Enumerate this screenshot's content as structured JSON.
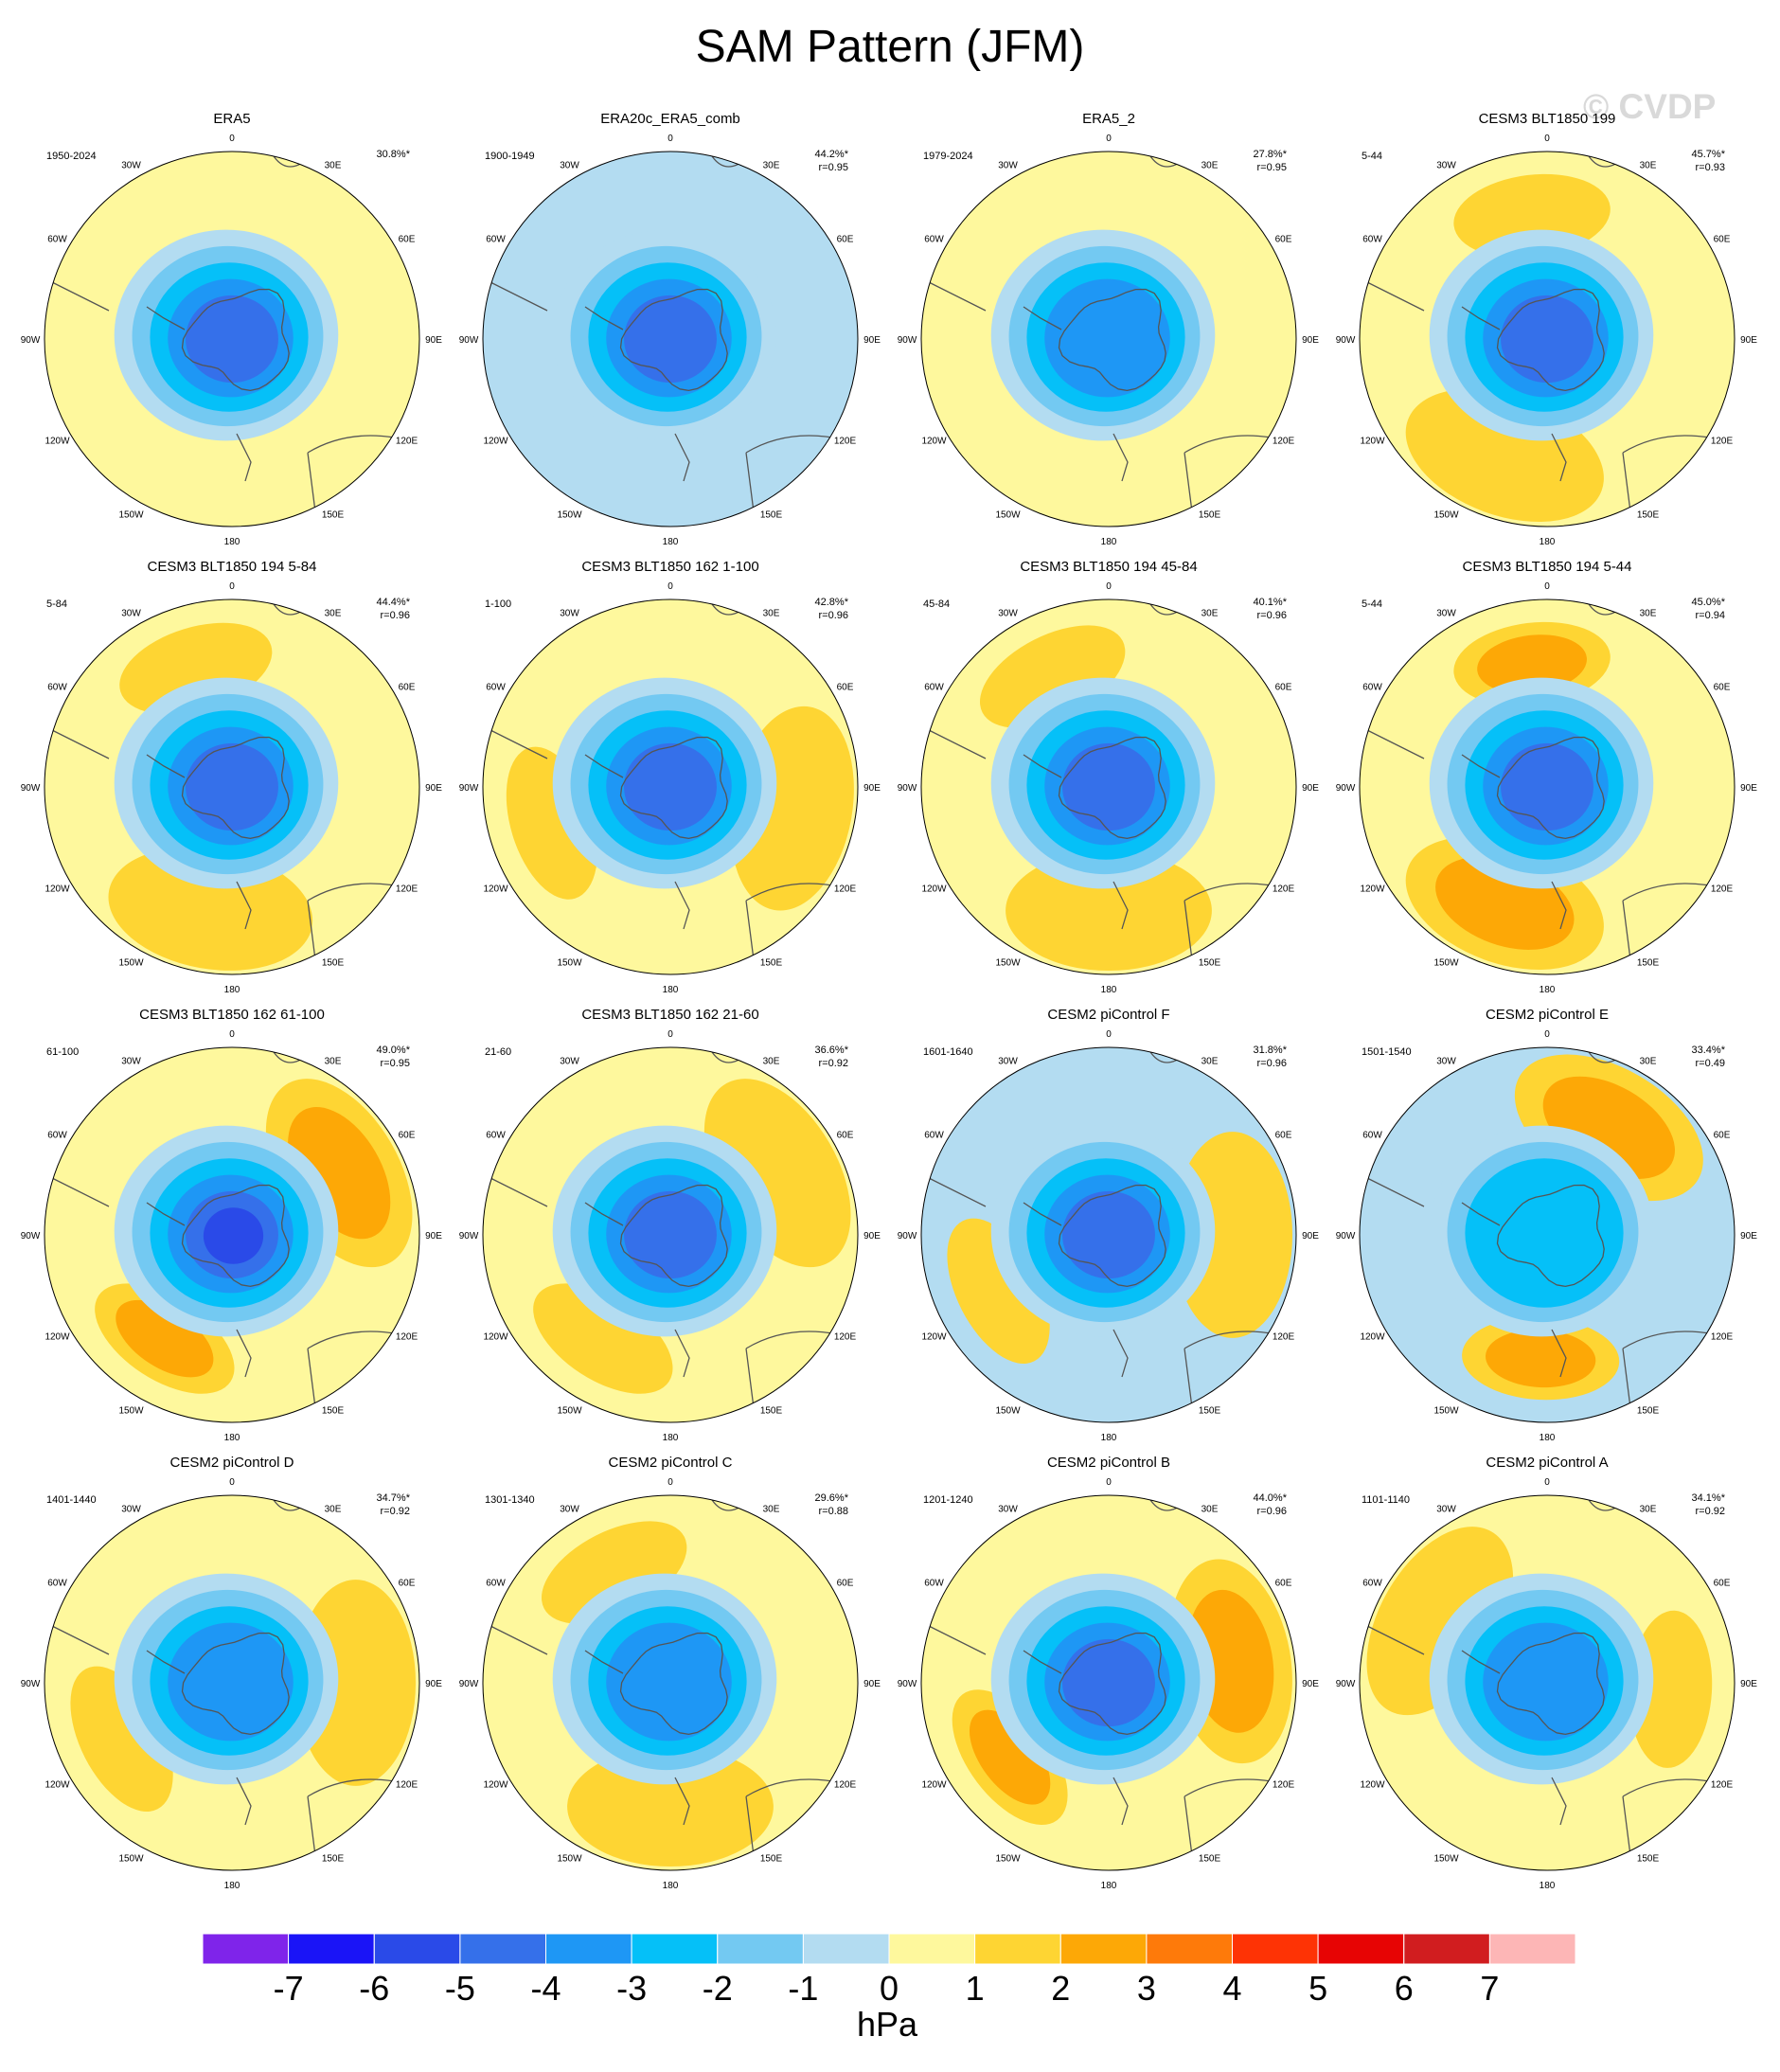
{
  "title": "SAM Pattern (JFM)",
  "watermark": "© CVDP",
  "chart_data": {
    "type": "heatmap",
    "projection": "south-polar-stereographic",
    "variable": "SAM Pattern (JFM)",
    "units": "hPa",
    "colorbar": {
      "levels": [
        -7,
        -6,
        -5,
        -4,
        -3,
        -2,
        -1,
        0,
        1,
        2,
        3,
        4,
        5,
        6,
        7
      ],
      "colors": [
        "#7f24ea",
        "#1a14f7",
        "#2a4ae8",
        "#3570ea",
        "#1e97f5",
        "#05c0f8",
        "#73c9f2",
        "#b3dcf1",
        "#fef89d",
        "#fed533",
        "#fda806",
        "#fe7a0a",
        "#fe3305",
        "#e70404",
        "#d11d1f",
        "#fdb6b6"
      ]
    },
    "lon_labels": [
      "0",
      "30E",
      "60E",
      "90E",
      "120E",
      "150E",
      "180",
      "150W",
      "120W",
      "90W",
      "60W",
      "30W"
    ],
    "panels": [
      {
        "title": "ERA5",
        "years": "1950-2024",
        "pct": "30.8%*",
        "r": "",
        "ring_amp": 0.0,
        "ring_phase": 0,
        "core_level": -4,
        "outer": 0
      },
      {
        "title": "ERA20c_ERA5_comb",
        "years": "1900-1949",
        "pct": "44.2%*",
        "r": "r=0.95",
        "ring_amp": 0.0,
        "ring_phase": 0,
        "core_level": -4,
        "outer": -1
      },
      {
        "title": "ERA5_2",
        "years": "1979-2024",
        "pct": "27.8%*",
        "r": "r=0.95",
        "ring_amp": 0.0,
        "ring_phase": 0,
        "core_level": -3,
        "outer": 0
      },
      {
        "title": "CESM3 BLT1850 199",
        "years": "5-44",
        "pct": "45.7%*",
        "r": "r=0.93",
        "ring_amp": 1.8,
        "ring_phase": 200,
        "core_level": -4,
        "outer": 0
      },
      {
        "title": "CESM3 BLT1850 194 5-84",
        "years": "5-84",
        "pct": "44.4%*",
        "r": "r=0.96",
        "ring_amp": 1.9,
        "ring_phase": 190,
        "core_level": -4,
        "outer": 0
      },
      {
        "title": "CESM3 BLT1850 162 1-100",
        "years": "1-100",
        "pct": "42.8%*",
        "r": "r=0.96",
        "ring_amp": 1.6,
        "ring_phase": 100,
        "core_level": -4,
        "outer": 0
      },
      {
        "title": "CESM3 BLT1850 194 45-84",
        "years": "45-84",
        "pct": "40.1%*",
        "r": "r=0.96",
        "ring_amp": 1.5,
        "ring_phase": 180,
        "core_level": -4,
        "outer": 0
      },
      {
        "title": "CESM3 BLT1850 194 5-44",
        "years": "5-44",
        "pct": "45.0%*",
        "r": "r=0.94",
        "ring_amp": 2.0,
        "ring_phase": 200,
        "core_level": -4,
        "outer": 0
      },
      {
        "title": "CESM3 BLT1850 162 61-100",
        "years": "61-100",
        "pct": "49.0%*",
        "r": "r=0.95",
        "ring_amp": 2.1,
        "ring_phase": 60,
        "core_level": -5,
        "outer": 0
      },
      {
        "title": "CESM3 BLT1850 162 21-60",
        "years": "21-60",
        "pct": "36.6%*",
        "r": "r=0.92",
        "ring_amp": 1.7,
        "ring_phase": 60,
        "core_level": -4,
        "outer": 0
      },
      {
        "title": "CESM2 piControl F",
        "years": "1601-1640",
        "pct": "31.8%*",
        "r": "r=0.96",
        "ring_amp": 1.4,
        "ring_phase": 90,
        "core_level": -4,
        "outer": -1
      },
      {
        "title": "CESM2 piControl E",
        "years": "1501-1540",
        "pct": "33.4%*",
        "r": "r=0.49",
        "ring_amp": 2.2,
        "ring_phase": 30,
        "core_level": -2,
        "outer": -1
      },
      {
        "title": "CESM2 piControl D",
        "years": "1401-1440",
        "pct": "34.7%*",
        "r": "r=0.92",
        "ring_amp": 1.8,
        "ring_phase": 90,
        "core_level": -3,
        "outer": 0
      },
      {
        "title": "CESM2 piControl C",
        "years": "1301-1340",
        "pct": "29.6%*",
        "r": "r=0.88",
        "ring_amp": 1.7,
        "ring_phase": 180,
        "core_level": -3,
        "outer": 0
      },
      {
        "title": "CESM2 piControl B",
        "years": "1201-1240",
        "pct": "44.0%*",
        "r": "r=0.96",
        "ring_amp": 2.0,
        "ring_phase": 80,
        "core_level": -4,
        "outer": 0
      },
      {
        "title": "CESM2 piControl A",
        "years": "1101-1140",
        "pct": "34.1%*",
        "r": "r=0.92",
        "ring_amp": 1.7,
        "ring_phase": 300,
        "core_level": -3,
        "outer": 0
      }
    ]
  }
}
